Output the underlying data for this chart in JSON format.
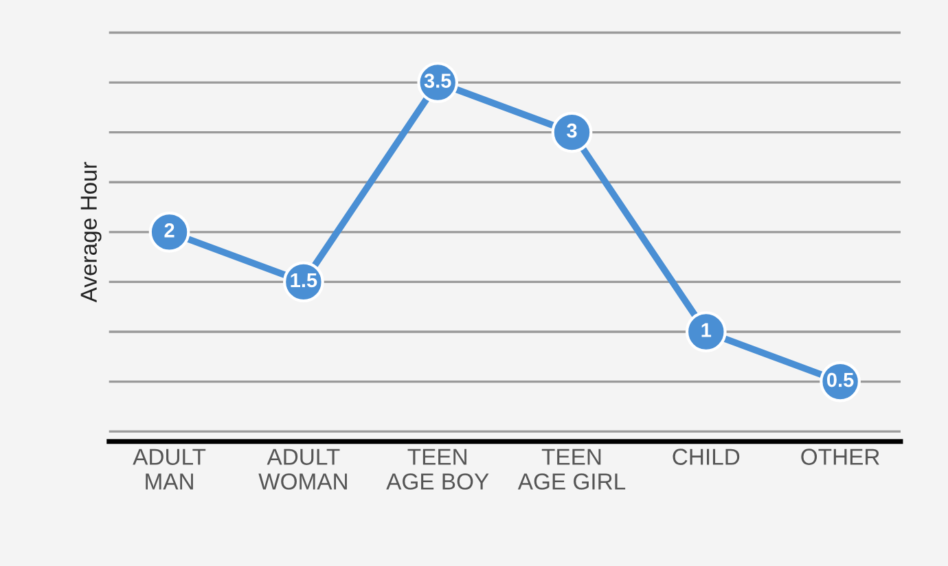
{
  "chart_data": {
    "type": "line",
    "ylabel": "Average Hour",
    "categories": [
      "ADULT\nMAN",
      "ADULT\nWOMAN",
      "TEEN\nAGE BOY",
      "TEEN\nAGE GIRL",
      "CHILD",
      "OTHER"
    ],
    "series": [
      {
        "color": "#4a8fd4",
        "values": [
          2,
          1.5,
          3.5,
          3,
          1,
          0.5
        ]
      }
    ],
    "grid": "y",
    "marker": "circle",
    "line_style": "solid",
    "data_labels": true,
    "legend": false
  }
}
